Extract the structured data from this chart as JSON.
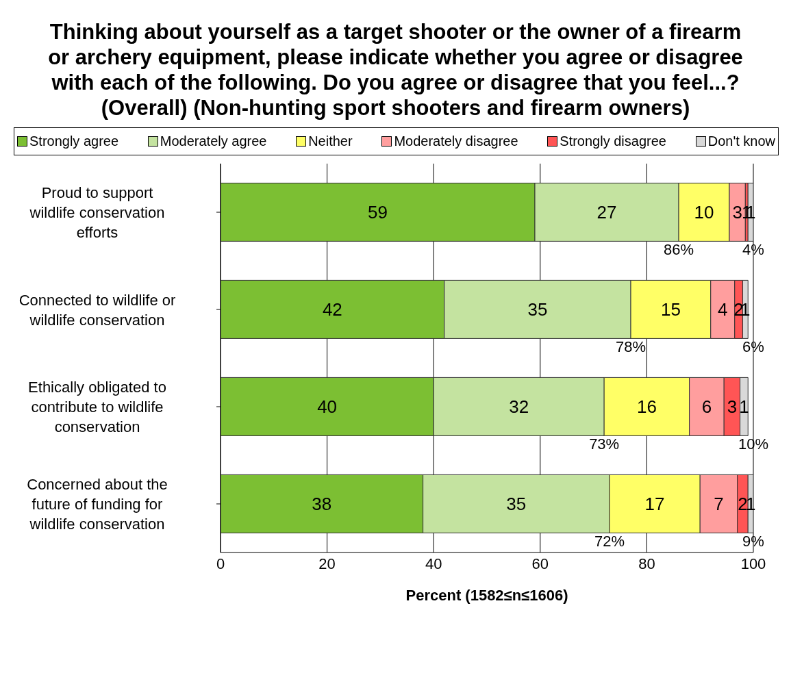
{
  "chart_data": {
    "type": "bar",
    "orientation": "horizontal",
    "stacked": true,
    "title": "Thinking about yourself as a target shooter or the owner of a firearm or archery equipment, please indicate whether you agree or disagree with each of the following. Do you agree or disagree that you feel...? (Overall) (Non-hunting sport shooters and firearm owners)",
    "xlabel": "Percent (1582≤n≤1606)",
    "categories": [
      "Proud to support wildlife conservation efforts",
      "Connected to wildlife or wildlife conservation",
      "Ethically obligated to contribute to wildlife conservation",
      "Concerned about the future of funding for wildlife conservation"
    ],
    "series": [
      {
        "name": "Strongly agree",
        "color": "#7cbf33",
        "values": [
          59,
          42,
          40,
          38
        ],
        "value_labels": [
          "59",
          "42",
          "40",
          "38"
        ]
      },
      {
        "name": "Moderately agree",
        "color": "#c4e3a0",
        "values": [
          27,
          35,
          32,
          35
        ],
        "value_labels": [
          "27",
          "35",
          "32",
          "35"
        ]
      },
      {
        "name": "Neither",
        "color": "#ffff66",
        "values": [
          9.5,
          15,
          16,
          17
        ],
        "value_labels": [
          "10",
          "15",
          "16",
          "17"
        ]
      },
      {
        "name": "Moderately disagree",
        "color": "#ff9e9e",
        "values": [
          3,
          4.5,
          6.5,
          7
        ],
        "value_labels": [
          "3",
          "4",
          "6",
          "7"
        ]
      },
      {
        "name": "Strongly disagree",
        "color": "#ff5555",
        "values": [
          0.5,
          1.5,
          3,
          2
        ],
        "value_labels": [
          "1",
          "2",
          "3",
          "2"
        ]
      },
      {
        "name": "Don't know",
        "color": "#d9d9d9",
        "values": [
          1,
          1,
          1.5,
          1
        ],
        "value_labels": [
          "1",
          "1",
          "1",
          "1"
        ]
      }
    ],
    "xlim": [
      0,
      100
    ],
    "xticks": [
      0,
      20,
      40,
      60,
      80,
      100
    ],
    "grid": "x",
    "legend": "top",
    "annotations": [
      "86%",
      "4%",
      "78%",
      "6%",
      "73%",
      "10%",
      "72%",
      "9%"
    ]
  }
}
